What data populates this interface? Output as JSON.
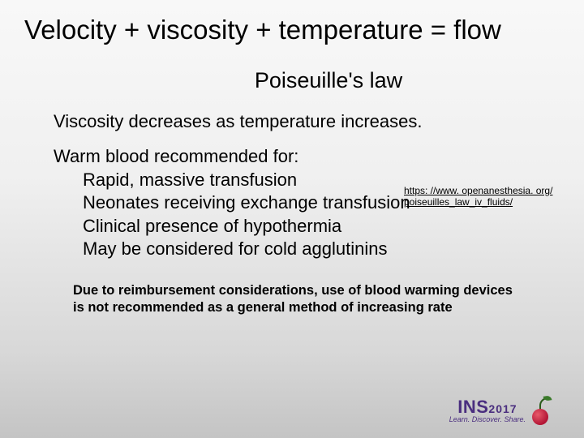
{
  "background": {
    "gradient_top": "#f8f8f8",
    "gradient_bottom": "#c4c4c4"
  },
  "title": "Velocity + viscosity + temperature = flow",
  "subtitle": "Poiseuille's law",
  "viscosity_line": "Viscosity decreases as temperature increases.",
  "reference_link": "https: //www. openanesthesia. org/poiseuilles_law_iv_fluids/",
  "warm": {
    "intro": "Warm blood recommended for:",
    "items": [
      "Rapid, massive transfusion",
      "Neonates receiving exchange transfusion",
      "Clinical presence of hypothermia",
      "May be considered for cold agglutinins"
    ]
  },
  "note": "Due to reimbursement considerations, use of blood warming devices is not recommended as a general method of increasing rate",
  "logo": {
    "brand": "INS",
    "year": "2017",
    "tagline": "Learn. Discover. Share.",
    "brand_color": "#4a2e7f",
    "cherry_color": "#b21535",
    "leaf_color": "#3a7a2a"
  },
  "typography": {
    "title_fontsize": 33,
    "subtitle_fontsize": 27,
    "body_fontsize": 22,
    "note_fontsize": 16.5,
    "link_fontsize": 12,
    "font_family": "Arial"
  }
}
